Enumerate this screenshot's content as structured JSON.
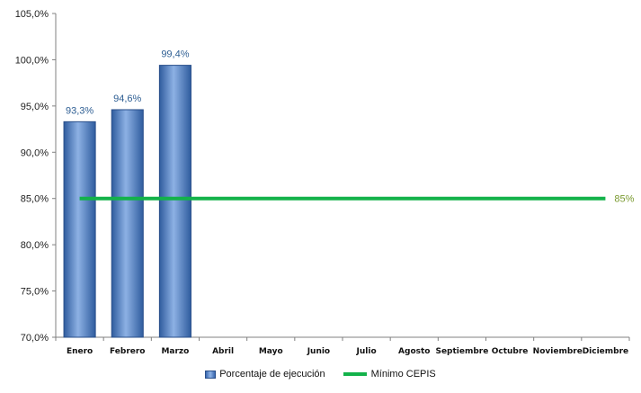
{
  "chart_data": {
    "type": "bar",
    "categories": [
      "Enero",
      "Febrero",
      "Marzo",
      "Abril",
      "Mayo",
      "Junio",
      "Julio",
      "Agosto",
      "Septiembre",
      "Octubre",
      "Noviembre",
      "Diciembre"
    ],
    "series": [
      {
        "name": "Porcentaje de ejecución",
        "type": "bar",
        "values": [
          93.3,
          94.6,
          99.4,
          null,
          null,
          null,
          null,
          null,
          null,
          null,
          null,
          null
        ],
        "data_labels": [
          "93,3%",
          "94,6%",
          "99,4%"
        ],
        "color": "#4A79C0"
      },
      {
        "name": "Mínimo CEPIS",
        "type": "line",
        "values": [
          85,
          85,
          85,
          85,
          85,
          85,
          85,
          85,
          85,
          85,
          85,
          85
        ],
        "end_label": "85%",
        "color": "#13B24A"
      }
    ],
    "ylim": [
      70,
      105
    ],
    "yticks": [
      "70,0%",
      "75,0%",
      "80,0%",
      "85,0%",
      "90,0%",
      "95,0%",
      "100,0%",
      "105,0%"
    ],
    "grid": false,
    "legend_position": "bottom",
    "title": "",
    "xlabel": "",
    "ylabel": ""
  }
}
